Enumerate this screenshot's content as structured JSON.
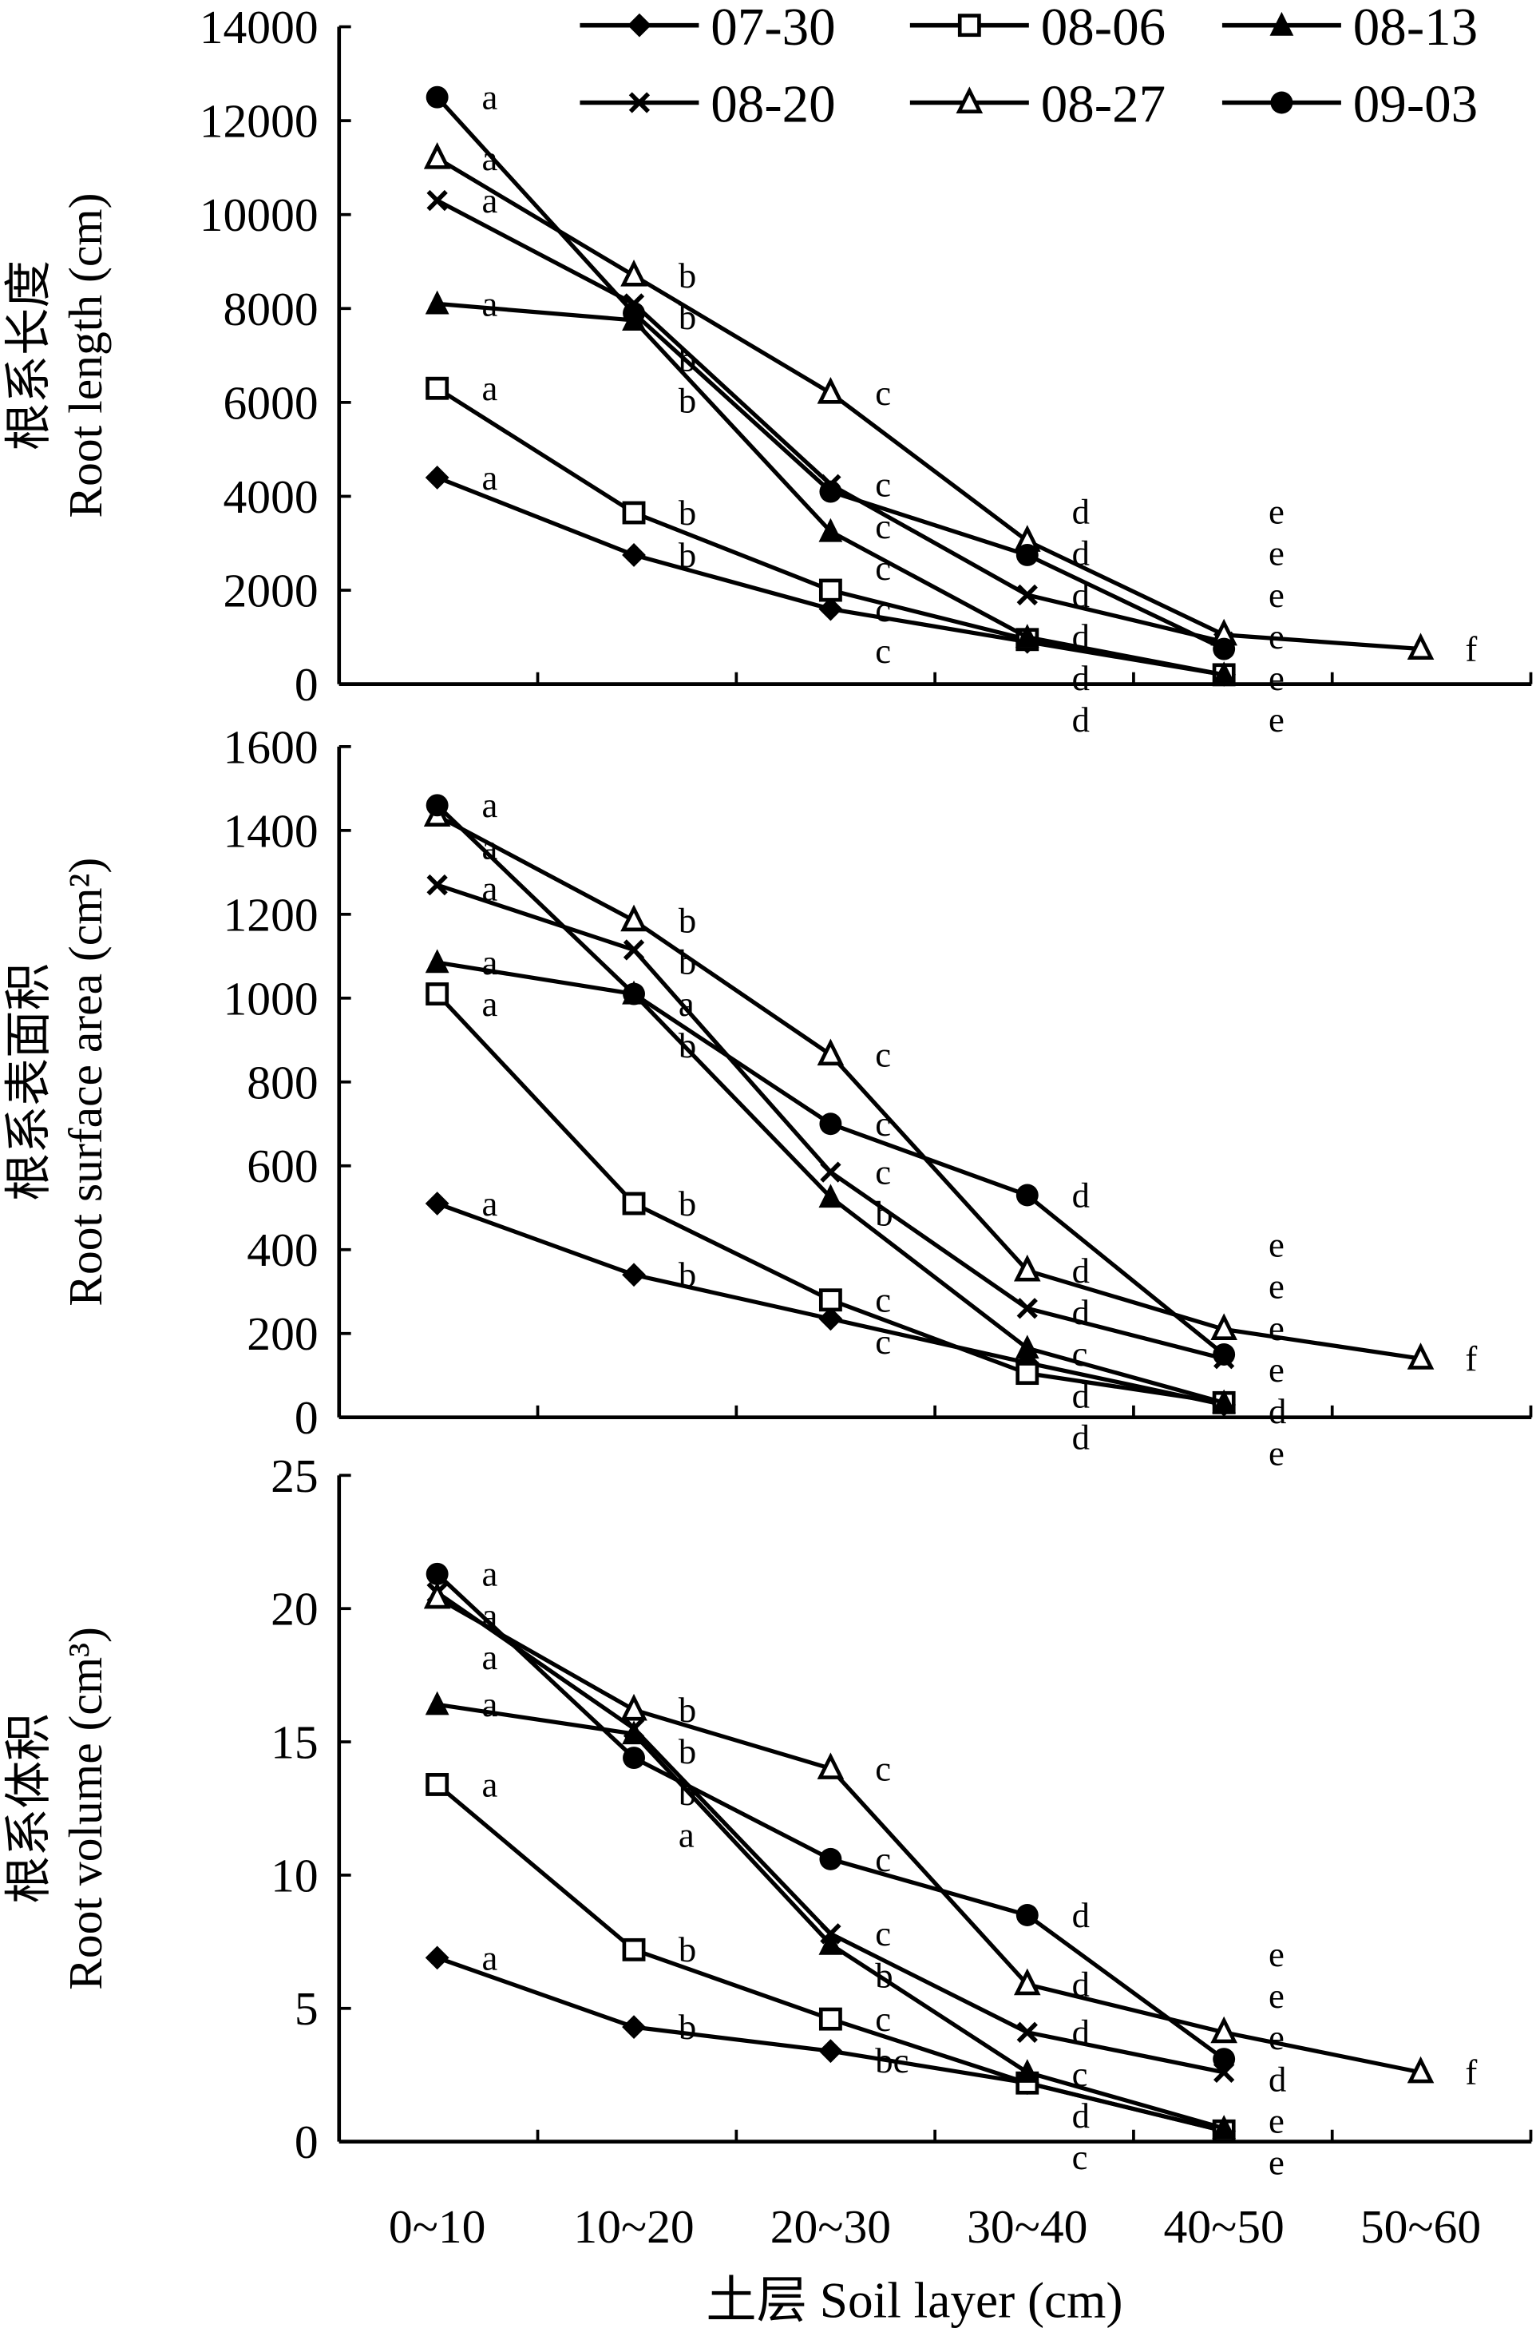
{
  "chart_data": {
    "type": "line",
    "x_label": "土层 Soil layer (cm)",
    "categories": [
      "0~10",
      "10~20",
      "20~30",
      "30~40",
      "40~50",
      "50~60"
    ],
    "legend": {
      "placement": "top",
      "entries": [
        "07-30",
        "08-06",
        "08-13",
        "08-20",
        "08-27",
        "09-03"
      ]
    },
    "series_markers": {
      "07-30": "filled-diamond",
      "08-06": "open-square",
      "08-13": "filled-triangle",
      "08-20": "cross",
      "08-27": "open-triangle",
      "09-03": "filled-circle"
    },
    "panels": [
      {
        "y_label_cn": "根系长度",
        "y_label_en": "Root length (cm)",
        "ylim": [
          0,
          14000
        ],
        "yticks": [
          0,
          2000,
          4000,
          6000,
          8000,
          10000,
          12000,
          14000
        ],
        "series": [
          {
            "name": "07-30",
            "values": [
              4400,
              2750,
              1600,
              900,
              200
            ],
            "letters": [
              "a",
              "b",
              "c",
              "d",
              "e"
            ]
          },
          {
            "name": "08-06",
            "values": [
              6300,
              3650,
              2000,
              950,
              200
            ],
            "letters": [
              "a",
              "b",
              "c",
              "d",
              "e"
            ]
          },
          {
            "name": "08-13",
            "values": [
              8100,
              7750,
              3250,
              1000,
              200
            ],
            "letters": [
              "a",
              "b",
              "c",
              "d",
              "e"
            ]
          },
          {
            "name": "08-20",
            "values": [
              10300,
              8100,
              4250,
              1900,
              900
            ],
            "letters": [
              "a",
              "b",
              "c",
              "d",
              "e"
            ]
          },
          {
            "name": "08-27",
            "values": [
              11200,
              8700,
              6200,
              3050,
              1050,
              750
            ],
            "letters": [
              "a",
              "b",
              "c",
              "d",
              "e",
              "f"
            ]
          },
          {
            "name": "09-03",
            "values": [
              12500,
              7900,
              4100,
              2750,
              750
            ],
            "letters": [
              "a",
              "b",
              "c",
              "d",
              "e"
            ]
          }
        ]
      },
      {
        "y_label_cn": "根系表面积",
        "y_label_en": "Root surface area (cm²)",
        "ylim": [
          0,
          1600
        ],
        "yticks": [
          0,
          200,
          400,
          600,
          800,
          1000,
          1200,
          1400,
          1600
        ],
        "series": [
          {
            "name": "07-30",
            "values": [
              510,
              340,
              235,
              130,
              30
            ],
            "letters": [
              "a",
              "b",
              "c",
              "d",
              "e"
            ]
          },
          {
            "name": "08-06",
            "values": [
              1010,
              510,
              280,
              105,
              35
            ],
            "letters": [
              "a",
              "b",
              "c",
              "d",
              "e"
            ]
          },
          {
            "name": "08-13",
            "values": [
              1085,
              1010,
              525,
              165,
              35
            ],
            "letters": [
              "a",
              "a",
              "b",
              "c",
              "d"
            ]
          },
          {
            "name": "08-20",
            "values": [
              1270,
              1115,
              585,
              260,
              140
            ],
            "letters": [
              "a",
              "b",
              "c",
              "d",
              "e"
            ]
          },
          {
            "name": "08-27",
            "values": [
              1435,
              1185,
              865,
              350,
              210,
              140
            ],
            "letters": [
              "a",
              "b",
              "c",
              "d",
              "e",
              "f"
            ]
          },
          {
            "name": "09-03",
            "values": [
              1460,
              1010,
              700,
              530,
              150
            ],
            "letters": [
              "a",
              "b",
              "c",
              "d",
              "e"
            ]
          }
        ]
      },
      {
        "y_label_cn": "根系体积",
        "y_label_en": "Root volume (cm³)",
        "ylim": [
          0,
          25
        ],
        "yticks": [
          0,
          5,
          10,
          15,
          20,
          25
        ],
        "series": [
          {
            "name": "07-30",
            "values": [
              6.9,
              4.3,
              3.4,
              2.2,
              0.4
            ],
            "letters": [
              "a",
              "b",
              "bc",
              "d",
              "e"
            ]
          },
          {
            "name": "08-06",
            "values": [
              13.4,
              7.2,
              4.6,
              2.2,
              0.4
            ],
            "letters": [
              "a",
              "b",
              "c",
              "c",
              "e"
            ]
          },
          {
            "name": "08-13",
            "values": [
              16.4,
              15.3,
              7.4,
              2.6,
              0.5
            ],
            "letters": [
              "a",
              "b",
              "b",
              "c",
              "d"
            ]
          },
          {
            "name": "08-20",
            "values": [
              20.6,
              15.5,
              7.8,
              4.1,
              2.6
            ],
            "letters": [
              "a",
              "b",
              "c",
              "d",
              "e"
            ]
          },
          {
            "name": "08-27",
            "values": [
              20.4,
              16.2,
              14.0,
              5.9,
              4.1,
              2.6
            ],
            "letters": [
              "a",
              "b",
              "c",
              "d",
              "e",
              "f"
            ]
          },
          {
            "name": "09-03",
            "values": [
              21.3,
              14.4,
              10.6,
              8.5,
              3.1
            ],
            "letters": [
              "a",
              "a",
              "c",
              "d",
              "e"
            ]
          }
        ]
      }
    ]
  }
}
